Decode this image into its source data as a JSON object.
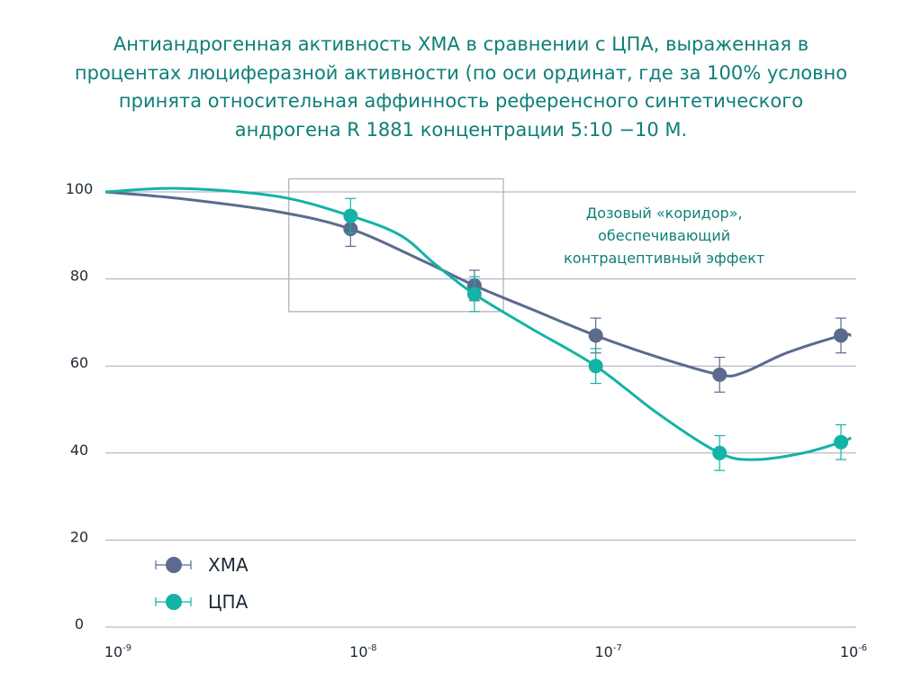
{
  "title_lines": [
    "Антиандрогенная активность ХМА в сравнении с ЦПА, выраженная в",
    "процентах люциферазной активности (по оси ординат, где за 100% условно",
    "принята относительная аффинность референсного синтетического",
    "андрогена R 1881 концентрации 5:10 −10 М."
  ],
  "chart_data": {
    "type": "line",
    "title": "Антиандрогенная активность ХМА в сравнении с ЦПА, выраженная в процентах люциферазной активности (по оси ординат, где за 100% условно принята относительная аффинность референсного синтетического андрогена R 1881 концентрации 5:10 −10 М.",
    "xscale": "log",
    "xlim": [
      1e-09,
      1.1e-06
    ],
    "ylim": [
      0,
      100
    ],
    "x_ticks": [
      {
        "value": 1e-09,
        "base": "10",
        "exp": "-9"
      },
      {
        "value": 1e-08,
        "base": "10",
        "exp": "-8"
      },
      {
        "value": 1e-07,
        "base": "10",
        "exp": "-7"
      },
      {
        "value": 1e-06,
        "base": "10",
        "exp": "-6"
      }
    ],
    "y_ticks": [
      0,
      20,
      40,
      60,
      80,
      100
    ],
    "grid": "horizontal",
    "legend_position": "bottom-left",
    "series": [
      {
        "name": "ХМА",
        "color": "#5a6b8e",
        "points": [
          {
            "x": 1e-08,
            "y": 91.5,
            "err": 4
          },
          {
            "x": 3.2e-08,
            "y": 78.5,
            "err": 3.5
          },
          {
            "x": 1e-07,
            "y": 67,
            "err": 4
          },
          {
            "x": 3.2e-07,
            "y": 58,
            "err": 4
          },
          {
            "x": 1e-06,
            "y": 67,
            "err": 4
          }
        ],
        "curve": [
          {
            "x": 1e-09,
            "y": 100
          },
          {
            "x": 2e-09,
            "y": 98.5
          },
          {
            "x": 5e-09,
            "y": 95.5
          },
          {
            "x": 1e-08,
            "y": 91.5
          },
          {
            "x": 2e-08,
            "y": 84
          },
          {
            "x": 3.2e-08,
            "y": 78.5
          },
          {
            "x": 5.5e-08,
            "y": 73
          },
          {
            "x": 1e-07,
            "y": 67
          },
          {
            "x": 1.8e-07,
            "y": 62
          },
          {
            "x": 3.2e-07,
            "y": 58
          },
          {
            "x": 4e-07,
            "y": 58.5
          },
          {
            "x": 6e-07,
            "y": 63
          },
          {
            "x": 1e-06,
            "y": 67
          },
          {
            "x": 1.1e-06,
            "y": 67
          }
        ]
      },
      {
        "name": "ЦПА",
        "color": "#13b3a6",
        "points": [
          {
            "x": 1e-08,
            "y": 94.5,
            "err": 4
          },
          {
            "x": 3.2e-08,
            "y": 76.5,
            "err": 4
          },
          {
            "x": 1e-07,
            "y": 60,
            "err": 4
          },
          {
            "x": 3.2e-07,
            "y": 40,
            "err": 4
          },
          {
            "x": 1e-06,
            "y": 42.5,
            "err": 4
          }
        ],
        "curve": [
          {
            "x": 1e-09,
            "y": 100
          },
          {
            "x": 2e-09,
            "y": 100.8
          },
          {
            "x": 5e-09,
            "y": 99
          },
          {
            "x": 1e-08,
            "y": 94.5
          },
          {
            "x": 1.6e-08,
            "y": 90
          },
          {
            "x": 2.2e-08,
            "y": 83.5
          },
          {
            "x": 3.2e-08,
            "y": 76.5
          },
          {
            "x": 5.5e-08,
            "y": 68.5
          },
          {
            "x": 1e-07,
            "y": 60
          },
          {
            "x": 1.8e-07,
            "y": 49
          },
          {
            "x": 3.2e-07,
            "y": 40
          },
          {
            "x": 4.5e-07,
            "y": 38.5
          },
          {
            "x": 7e-07,
            "y": 40
          },
          {
            "x": 1e-06,
            "y": 42.5
          },
          {
            "x": 1.1e-06,
            "y": 43.5
          }
        ]
      }
    ],
    "highlight_box": {
      "x0": 5.6e-09,
      "x1": 4.2e-08,
      "y0": 72.5,
      "y1": 103,
      "color": "#a9aeb4"
    },
    "annotation": {
      "lines": [
        "Дозовый «коридор»,",
        "обеспечивающий",
        "контрацептивный эффект"
      ],
      "x": 1e-07,
      "y": 94
    }
  }
}
